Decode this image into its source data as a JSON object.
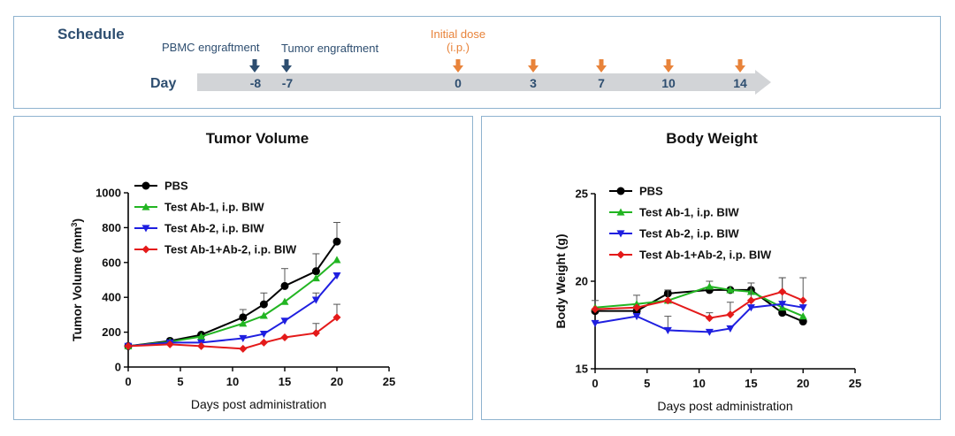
{
  "schedule": {
    "title": "Schedule",
    "day_label": "Day",
    "pre_events": [
      {
        "label": "PBMC engraftment",
        "day": "-8"
      },
      {
        "label": "Tumor  engraftment",
        "day": "-7"
      }
    ],
    "dose_label_line1": "Initial dose",
    "dose_label_line2": "(i.p.)",
    "dose_days": [
      "0",
      "3",
      "7",
      "10",
      "14"
    ],
    "colors": {
      "pre_arrow": "#2e4e70",
      "dose_arrow": "#e8833a",
      "dose_text": "#e8833a",
      "title": "#2e4e70",
      "timeline": "#d2d4d7"
    }
  },
  "chart_data": [
    {
      "type": "line",
      "title": "Tumor Volume",
      "xlabel": "Days post administration",
      "ylabel": "Tumor Volume (mm",
      "ylabel_sup": "3",
      "ylabel_close": ")",
      "xlim": [
        0,
        25
      ],
      "ylim": [
        0,
        1000
      ],
      "xticks": [
        "0",
        "5",
        "10",
        "15",
        "20",
        "25"
      ],
      "yticks": [
        "0",
        "200",
        "400",
        "600",
        "800",
        "1000"
      ],
      "legend_position": "top-left",
      "series": [
        {
          "name": "PBS",
          "color": "#000000",
          "marker": "circle",
          "x": [
            0,
            4,
            7,
            11,
            13,
            15,
            18,
            20
          ],
          "y": [
            120,
            150,
            185,
            285,
            360,
            465,
            550,
            720
          ],
          "err": [
            0,
            0,
            0,
            45,
            65,
            100,
            100,
            110
          ]
        },
        {
          "name": "Test Ab-1, i.p. BIW",
          "color": "#22b522",
          "marker": "triangle-up",
          "x": [
            0,
            4,
            7,
            11,
            13,
            15,
            18,
            20
          ],
          "y": [
            120,
            145,
            175,
            250,
            295,
            375,
            510,
            615
          ],
          "err": [
            0,
            0,
            0,
            0,
            0,
            0,
            0,
            0
          ]
        },
        {
          "name": "Test Ab-2, i.p. BIW",
          "color": "#1f1fe0",
          "marker": "triangle-down",
          "x": [
            0,
            4,
            7,
            11,
            13,
            15,
            18,
            20
          ],
          "y": [
            120,
            140,
            140,
            165,
            190,
            265,
            385,
            525
          ],
          "err": [
            0,
            0,
            0,
            0,
            0,
            0,
            40,
            0
          ]
        },
        {
          "name": "Test Ab-1+Ab-2, i.p. BIW",
          "color": "#e41a1a",
          "marker": "diamond",
          "x": [
            0,
            4,
            7,
            11,
            13,
            15,
            18,
            20
          ],
          "y": [
            120,
            130,
            120,
            105,
            140,
            170,
            195,
            285
          ],
          "err": [
            0,
            0,
            0,
            0,
            0,
            0,
            55,
            75
          ]
        }
      ]
    },
    {
      "type": "line",
      "title": "Body Weight",
      "xlabel": "Days post administration",
      "ylabel": "Body Weight (g)",
      "xlim": [
        0,
        25
      ],
      "ylim": [
        15,
        25
      ],
      "xticks": [
        "0",
        "5",
        "10",
        "15",
        "20",
        "25"
      ],
      "yticks": [
        "15",
        "20",
        "25"
      ],
      "legend_position": "top-left",
      "series": [
        {
          "name": "PBS",
          "color": "#000000",
          "marker": "circle",
          "x": [
            0,
            4,
            7,
            11,
            13,
            15,
            18,
            20
          ],
          "y": [
            18.3,
            18.3,
            19.3,
            19.5,
            19.5,
            19.5,
            18.2,
            17.7
          ],
          "err": [
            0.6,
            0,
            0,
            0.5,
            0,
            0,
            0,
            0
          ]
        },
        {
          "name": "Test Ab-1, i.p. BIW",
          "color": "#22b522",
          "marker": "triangle-up",
          "x": [
            0,
            4,
            7,
            11,
            13,
            15,
            18,
            20
          ],
          "y": [
            18.5,
            18.7,
            18.9,
            19.7,
            19.5,
            19.4,
            18.5,
            18.0
          ],
          "err": [
            0,
            0.5,
            0.6,
            0,
            0,
            0,
            0,
            0
          ]
        },
        {
          "name": "Test Ab-2, i.p. BIW",
          "color": "#1f1fe0",
          "marker": "triangle-down",
          "x": [
            0,
            4,
            7,
            11,
            13,
            15,
            18,
            20
          ],
          "y": [
            17.6,
            18.0,
            17.2,
            17.1,
            17.3,
            18.5,
            18.7,
            18.5
          ],
          "err": [
            0,
            0,
            0.8,
            0,
            0,
            0,
            1.5,
            1.7
          ]
        },
        {
          "name": "Test Ab-1+Ab-2, i.p. BIW",
          "color": "#e41a1a",
          "marker": "diamond",
          "x": [
            0,
            4,
            7,
            11,
            13,
            15,
            18,
            20
          ],
          "y": [
            18.4,
            18.5,
            18.9,
            17.9,
            18.1,
            18.9,
            19.4,
            18.9
          ],
          "err": [
            0,
            0,
            0,
            0.3,
            0.7,
            1.0,
            0.8,
            0
          ]
        }
      ]
    }
  ]
}
